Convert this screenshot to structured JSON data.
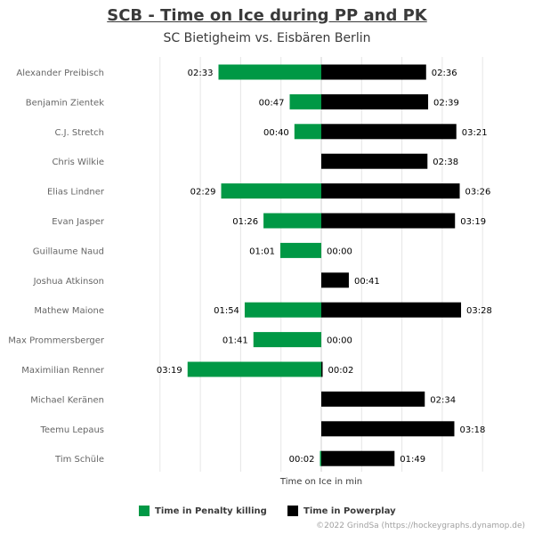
{
  "chart_data": {
    "type": "bar",
    "orientation": "horizontal-diverging",
    "title": "SCB - Time on Ice during PP and PK",
    "subtitle": "SC Bietigheim vs. Eisbären Berlin",
    "xlabel": "Time on Ice in min",
    "grid": true,
    "legend_placement": "bottom",
    "categories": [
      "Alexander Preibisch",
      "Benjamin Zientek",
      "C.J. Stretch",
      "Chris Wilkie",
      "Elias Lindner",
      "Evan Jasper",
      "Guillaume Naud",
      "Joshua Atkinson",
      "Mathew Maione",
      "Max Prommersberger",
      "Maximilian Renner",
      "Michael Keränen",
      "Teemu Lepaus",
      "Tim Schüle"
    ],
    "series": [
      {
        "name": "Time in Penalty killing",
        "color": "#009845",
        "side": "left",
        "values_seconds": [
          153,
          47,
          40,
          null,
          149,
          86,
          61,
          null,
          114,
          101,
          199,
          null,
          null,
          2
        ],
        "labels": [
          "02:33",
          "00:47",
          "00:40",
          "",
          "02:29",
          "01:26",
          "01:01",
          "",
          "01:54",
          "01:41",
          "03:19",
          "",
          "",
          "00:02"
        ]
      },
      {
        "name": "Time in Powerplay",
        "color": "#000000",
        "side": "right",
        "values_seconds": [
          156,
          159,
          201,
          158,
          206,
          199,
          0,
          41,
          208,
          0,
          2,
          154,
          198,
          109
        ],
        "labels": [
          "02:36",
          "02:39",
          "03:21",
          "02:38",
          "03:26",
          "03:19",
          "00:00",
          "00:41",
          "03:28",
          "00:00",
          "00:02",
          "02:34",
          "03:18",
          "01:49"
        ]
      }
    ],
    "xlim_seconds": [
      -270,
      270
    ]
  },
  "credit": "©2022 GrindSa (https://hockeygraphs.dynamop.de)"
}
